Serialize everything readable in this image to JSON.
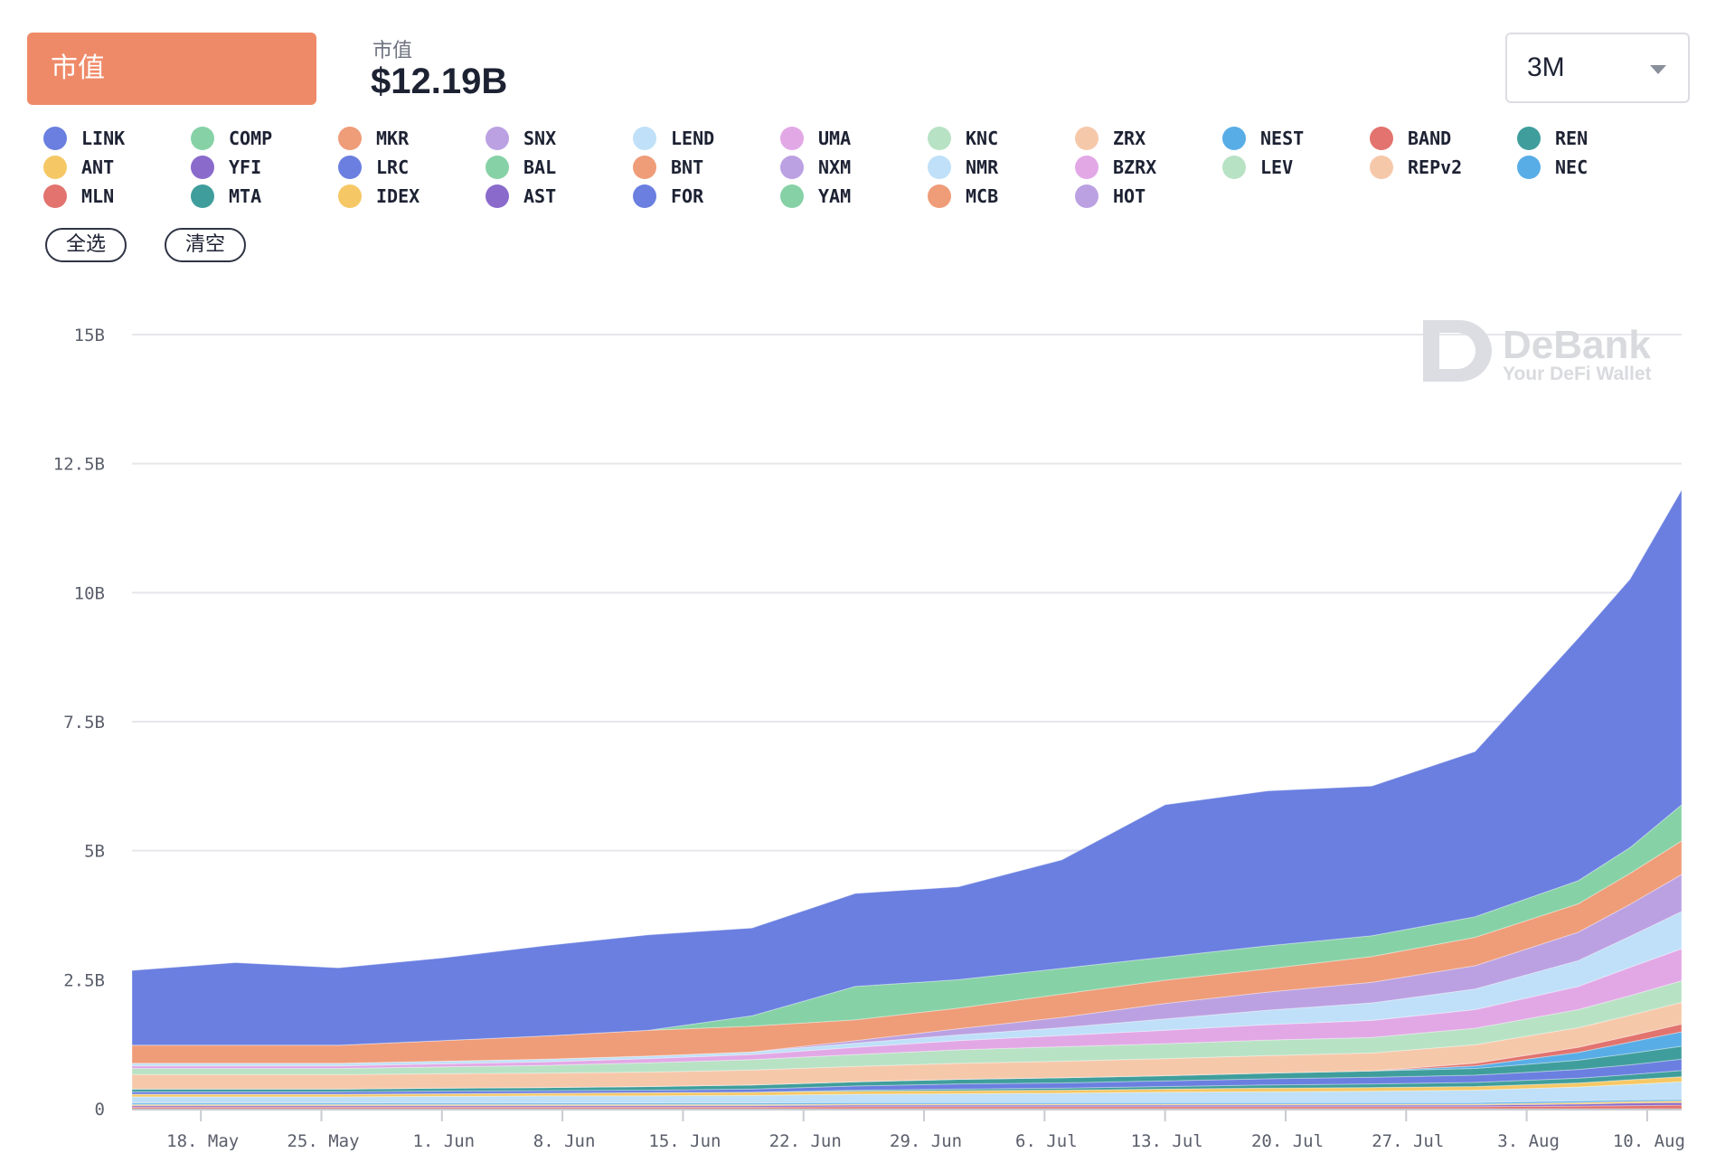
{
  "header": {
    "metric_label": "市值",
    "summary_label": "市值",
    "summary_value": "$12.19B",
    "range_value": "3M"
  },
  "buttons": {
    "select_all": "全选",
    "clear": "清空"
  },
  "watermark": {
    "brand": "DeBank",
    "tagline": "Your DeFi Wallet"
  },
  "legend": [
    {
      "name": "LINK",
      "color": "#6a7fe0"
    },
    {
      "name": "COMP",
      "color": "#86d2a6"
    },
    {
      "name": "MKR",
      "color": "#ef9c78"
    },
    {
      "name": "SNX",
      "color": "#bba1e2"
    },
    {
      "name": "LEND",
      "color": "#bfe0f8"
    },
    {
      "name": "UMA",
      "color": "#e2a8e6"
    },
    {
      "name": "KNC",
      "color": "#b8e2c4"
    },
    {
      "name": "ZRX",
      "color": "#f6c8aa"
    },
    {
      "name": "NEST",
      "color": "#58ade6"
    },
    {
      "name": "BAND",
      "color": "#e2736e"
    },
    {
      "name": "REN",
      "color": "#3f9e9c"
    },
    {
      "name": "ANT",
      "color": "#f6c865"
    },
    {
      "name": "YFI",
      "color": "#8a6acb"
    },
    {
      "name": "LRC",
      "color": "#6a7fe0"
    },
    {
      "name": "BAL",
      "color": "#86d2a6"
    },
    {
      "name": "BNT",
      "color": "#ef9c78"
    },
    {
      "name": "NXM",
      "color": "#bba1e2"
    },
    {
      "name": "NMR",
      "color": "#bfe0f8"
    },
    {
      "name": "BZRX",
      "color": "#e2a8e6"
    },
    {
      "name": "LEV",
      "color": "#b8e2c4"
    },
    {
      "name": "REPv2",
      "color": "#f6c8aa"
    },
    {
      "name": "NEC",
      "color": "#58ade6"
    },
    {
      "name": "MLN",
      "color": "#e2736e"
    },
    {
      "name": "MTA",
      "color": "#3f9e9c"
    },
    {
      "name": "IDEX",
      "color": "#f6c865"
    },
    {
      "name": "AST",
      "color": "#8a6acb"
    },
    {
      "name": "FOR",
      "color": "#6a7fe0"
    },
    {
      "name": "YAM",
      "color": "#86d2a6"
    },
    {
      "name": "MCB",
      "color": "#ef9c78"
    },
    {
      "name": "HOT",
      "color": "#bba1e2"
    }
  ],
  "chart_data": {
    "type": "area",
    "stacked": true,
    "grid": true,
    "legend_position": "top",
    "ylim": [
      0,
      15000000000
    ],
    "y_ticks": [
      {
        "value": 0,
        "label": "0"
      },
      {
        "value": 2500000000,
        "label": "2.5B"
      },
      {
        "value": 5000000000,
        "label": "5B"
      },
      {
        "value": 7500000000,
        "label": "7.5B"
      },
      {
        "value": 10000000000,
        "label": "10B"
      },
      {
        "value": 12500000000,
        "label": "12.5B"
      },
      {
        "value": 15000000000,
        "label": "15B"
      }
    ],
    "x_range": [
      "2020-05-14",
      "2020-08-12"
    ],
    "x_ticks": [
      {
        "date": "2020-05-18",
        "label": "18. May"
      },
      {
        "date": "2020-05-25",
        "label": "25. May"
      },
      {
        "date": "2020-06-01",
        "label": "1. Jun"
      },
      {
        "date": "2020-06-08",
        "label": "8. Jun"
      },
      {
        "date": "2020-06-15",
        "label": "15. Jun"
      },
      {
        "date": "2020-06-22",
        "label": "22. Jun"
      },
      {
        "date": "2020-06-29",
        "label": "29. Jun"
      },
      {
        "date": "2020-07-06",
        "label": "6. Jul"
      },
      {
        "date": "2020-07-13",
        "label": "13. Jul"
      },
      {
        "date": "2020-07-20",
        "label": "20. Jul"
      },
      {
        "date": "2020-07-27",
        "label": "27. Jul"
      },
      {
        "date": "2020-08-03",
        "label": "3. Aug"
      },
      {
        "date": "2020-08-10",
        "label": "10. Aug"
      }
    ],
    "dates": [
      "2020-05-14",
      "2020-05-20",
      "2020-05-26",
      "2020-06-01",
      "2020-06-07",
      "2020-06-13",
      "2020-06-19",
      "2020-06-25",
      "2020-07-01",
      "2020-07-07",
      "2020-07-13",
      "2020-07-19",
      "2020-07-25",
      "2020-07-31",
      "2020-08-06",
      "2020-08-09",
      "2020-08-12"
    ],
    "series": [
      {
        "name": "MLN",
        "color": "#e2736e",
        "values": [
          0.03,
          0.03,
          0.03,
          0.03,
          0.03,
          0.03,
          0.03,
          0.04,
          0.04,
          0.04,
          0.04,
          0.04,
          0.04,
          0.04,
          0.05,
          0.06,
          0.07
        ]
      },
      {
        "name": "AST",
        "color": "#8a6acb",
        "values": [
          0.03,
          0.03,
          0.03,
          0.03,
          0.03,
          0.03,
          0.03,
          0.03,
          0.03,
          0.03,
          0.03,
          0.03,
          0.03,
          0.03,
          0.04,
          0.05,
          0.05
        ]
      },
      {
        "name": "IDEX",
        "color": "#f6c865",
        "values": [
          0.02,
          0.02,
          0.02,
          0.02,
          0.02,
          0.02,
          0.02,
          0.02,
          0.02,
          0.02,
          0.02,
          0.02,
          0.02,
          0.02,
          0.03,
          0.03,
          0.03
        ]
      },
      {
        "name": "NEC",
        "color": "#58ade6",
        "values": [
          0.03,
          0.03,
          0.03,
          0.03,
          0.03,
          0.03,
          0.03,
          0.03,
          0.03,
          0.03,
          0.03,
          0.03,
          0.03,
          0.03,
          0.03,
          0.03,
          0.03
        ]
      },
      {
        "name": "LEND",
        "color": "#bfe0f8",
        "values": [
          0.12,
          0.12,
          0.12,
          0.13,
          0.14,
          0.14,
          0.15,
          0.16,
          0.17,
          0.18,
          0.2,
          0.21,
          0.22,
          0.24,
          0.27,
          0.3,
          0.34
        ]
      },
      {
        "name": "ANT",
        "color": "#f6c865",
        "values": [
          0.05,
          0.05,
          0.05,
          0.05,
          0.05,
          0.06,
          0.06,
          0.06,
          0.06,
          0.06,
          0.06,
          0.07,
          0.07,
          0.07,
          0.08,
          0.09,
          0.1
        ]
      },
      {
        "name": "MTA",
        "color": "#3f9e9c",
        "values": [
          0.0,
          0.0,
          0.0,
          0.0,
          0.0,
          0.0,
          0.0,
          0.02,
          0.03,
          0.04,
          0.05,
          0.06,
          0.07,
          0.08,
          0.09,
          0.1,
          0.12
        ]
      },
      {
        "name": "LRC",
        "color": "#6a7fe0",
        "values": [
          0.05,
          0.05,
          0.05,
          0.05,
          0.05,
          0.05,
          0.06,
          0.08,
          0.1,
          0.1,
          0.11,
          0.12,
          0.13,
          0.14,
          0.17,
          0.19,
          0.22
        ]
      },
      {
        "name": "REN",
        "color": "#3f9e9c",
        "values": [
          0.05,
          0.05,
          0.05,
          0.06,
          0.06,
          0.07,
          0.08,
          0.08,
          0.09,
          0.1,
          0.1,
          0.11,
          0.12,
          0.13,
          0.18,
          0.22,
          0.25
        ]
      },
      {
        "name": "NEST",
        "color": "#58ade6",
        "values": [
          0.0,
          0.0,
          0.0,
          0.0,
          0.0,
          0.0,
          0.0,
          0.0,
          0.0,
          0.0,
          0.0,
          0.0,
          0.0,
          0.05,
          0.15,
          0.22,
          0.28
        ]
      },
      {
        "name": "BAND",
        "color": "#e2736e",
        "values": [
          0.0,
          0.0,
          0.0,
          0.0,
          0.0,
          0.0,
          0.0,
          0.0,
          0.0,
          0.0,
          0.0,
          0.0,
          0.0,
          0.05,
          0.1,
          0.12,
          0.15
        ]
      },
      {
        "name": "ZRX",
        "color": "#f6c8aa",
        "values": [
          0.28,
          0.28,
          0.28,
          0.28,
          0.28,
          0.28,
          0.29,
          0.3,
          0.31,
          0.32,
          0.33,
          0.34,
          0.35,
          0.36,
          0.38,
          0.4,
          0.42
        ]
      },
      {
        "name": "KNC",
        "color": "#b8e2c4",
        "values": [
          0.12,
          0.12,
          0.12,
          0.13,
          0.15,
          0.18,
          0.2,
          0.23,
          0.26,
          0.28,
          0.29,
          0.3,
          0.3,
          0.32,
          0.35,
          0.38,
          0.42
        ]
      },
      {
        "name": "UMA",
        "color": "#e2a8e6",
        "values": [
          0.05,
          0.05,
          0.05,
          0.06,
          0.07,
          0.08,
          0.1,
          0.14,
          0.18,
          0.22,
          0.26,
          0.3,
          0.33,
          0.36,
          0.45,
          0.55,
          0.62
        ]
      },
      {
        "name": "NMR",
        "color": "#bfe0f8",
        "values": [
          0.05,
          0.05,
          0.05,
          0.05,
          0.05,
          0.05,
          0.05,
          0.08,
          0.11,
          0.15,
          0.22,
          0.28,
          0.34,
          0.4,
          0.5,
          0.6,
          0.72
        ]
      },
      {
        "name": "SNX",
        "color": "#bba1e2",
        "values": [
          0.0,
          0.0,
          0.0,
          0.0,
          0.0,
          0.0,
          0.0,
          0.05,
          0.12,
          0.2,
          0.3,
          0.35,
          0.4,
          0.45,
          0.55,
          0.62,
          0.72
        ]
      },
      {
        "name": "MKR",
        "color": "#ef9c78",
        "values": [
          0.35,
          0.35,
          0.35,
          0.4,
          0.45,
          0.5,
          0.5,
          0.4,
          0.4,
          0.45,
          0.45,
          0.45,
          0.5,
          0.55,
          0.55,
          0.6,
          0.65
        ]
      },
      {
        "name": "COMP",
        "color": "#86d2a6",
        "values": [
          0.0,
          0.0,
          0.0,
          0.0,
          0.0,
          0.0,
          0.2,
          0.65,
          0.55,
          0.5,
          0.45,
          0.45,
          0.4,
          0.4,
          0.45,
          0.5,
          0.7
        ]
      },
      {
        "name": "LINK",
        "color": "#6a7fe0",
        "values": [
          1.45,
          1.6,
          1.5,
          1.6,
          1.75,
          1.85,
          1.7,
          1.8,
          1.8,
          2.1,
          2.95,
          3.0,
          2.9,
          3.2,
          4.7,
          5.2,
          6.1
        ]
      }
    ]
  }
}
